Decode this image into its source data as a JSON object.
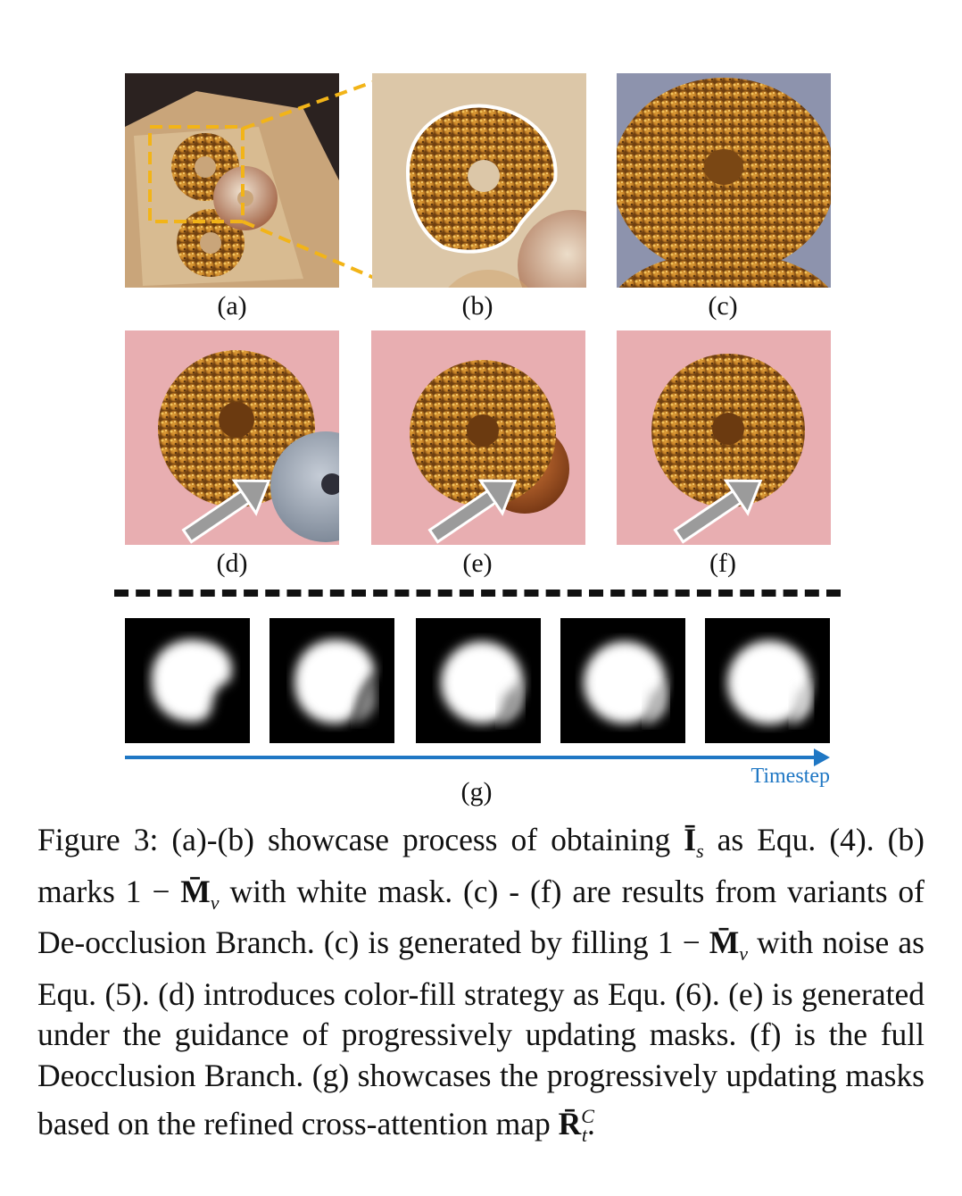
{
  "figure": {
    "panels": {
      "a": {
        "label": "(a)"
      },
      "b": {
        "label": "(b)"
      },
      "c": {
        "label": "(c)"
      },
      "d": {
        "label": "(d)"
      },
      "e": {
        "label": "(e)"
      },
      "f": {
        "label": "(f)"
      },
      "g": {
        "label": "(g)"
      }
    },
    "timestep_label": "Timestep",
    "colors": {
      "zoom_box": "#f2b418",
      "timestep_arrow": "#1f77c4",
      "pink_bg": "#e8aeb1",
      "box_tan": "#d9c3a3"
    }
  },
  "caption": {
    "part1": "Figure 3: (a)-(b) showcase process of obtaining ",
    "sym_I": "Ī",
    "sub_s": "s",
    "part2": " as Equ. (4). (b) marks 1 − ",
    "sym_M1": "M̄",
    "sub_v1": "v",
    "part3": " with white mask. (c) - (f) are results from variants of De-occlusion Branch. (c) is generated by filling 1 − ",
    "sym_M2": "M̄",
    "sub_v2": "v",
    "part4": " with noise as Equ. (5). (d) introduces color-fill strategy as Equ. (6). (e) is generated under the guidance of progressively updating masks. (f) is the full Deocclusion Branch. (g) showcases the progressively updating masks based on the refined cross-attention map ",
    "sym_R": "R̄",
    "sub_t": "t",
    "sup_C": "C",
    "part5": "."
  }
}
